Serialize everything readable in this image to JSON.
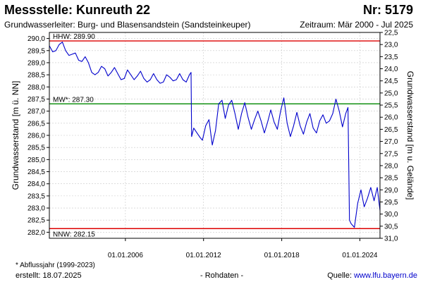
{
  "header": {
    "title": "Messstelle: Kunreuth 22",
    "station_number": "Nr: 5179",
    "aquifer": "Grundwasserleiter:  Burg- und Blasensandstein (Sandsteinkeuper)",
    "period": "Zeitraum: Mär 2000 - Jul 2025"
  },
  "footer": {
    "footnote": "* Abflussjahr (1999-2023)",
    "created": "erstellt:  18.07.2025",
    "raw_data": "- Rohdaten -",
    "source_label": "Quelle: ",
    "source_link": "www.lfu.bayern.de"
  },
  "colors": {
    "series": "#0000cc",
    "hhw_line": "#dd0000",
    "nnw_line": "#dd0000",
    "mw_line": "#008800",
    "grid": "#c8c8c8"
  },
  "chart_data": {
    "type": "line",
    "xlabel": "",
    "ylabel": "Grundwasserstand [m ü. NN]",
    "ylabel_right": "Grundwasserstand [m u. Gelände]",
    "x_range": [
      "2000-03-01",
      "2025-07-18"
    ],
    "ylim": [
      281.75,
      290.25
    ],
    "y_ticks": [
      282.0,
      282.5,
      283.0,
      283.5,
      284.0,
      284.5,
      285.0,
      285.5,
      286.0,
      286.5,
      287.0,
      287.5,
      288.0,
      288.5,
      289.0,
      289.5,
      290.0
    ],
    "y_tick_labels": [
      "282,0",
      "282,5",
      "283,0",
      "283,5",
      "284,0",
      "284,5",
      "285,0",
      "285,5",
      "286,0",
      "286,5",
      "287,0",
      "287,5",
      "288,0",
      "288,5",
      "289,0",
      "289,5",
      "290,0"
    ],
    "x_ticks": [
      "2006-01-01",
      "2012-01-01",
      "2018-01-01",
      "2024-01-01"
    ],
    "x_tick_labels": [
      "01.01.2006",
      "01.01.2012",
      "01.01.2018",
      "01.01.2024"
    ],
    "right_axis_ticks": [
      22.5,
      23.0,
      23.5,
      24.0,
      24.5,
      25.0,
      25.5,
      26.0,
      26.5,
      27.0,
      27.5,
      28.0,
      28.5,
      29.0,
      29.5,
      30.0,
      30.5,
      31.0
    ],
    "right_axis_tick_labels": [
      "22,5",
      "23,0",
      "23,5",
      "24,0",
      "24,5",
      "25,0",
      "25,5",
      "26,0",
      "26,5",
      "27,0",
      "27,5",
      "28,0",
      "28,5",
      "29,0",
      "29,5",
      "30,0",
      "30,5",
      "31,0"
    ],
    "right_axis_offset": 312.75,
    "grid": true,
    "reference_lines": [
      {
        "key": "hhw",
        "label": "HHW: 289.90",
        "value": 289.9
      },
      {
        "key": "mw",
        "label": "MW*: 287.30",
        "value": 287.3
      },
      {
        "key": "nnw",
        "label": "NNW: 282.15",
        "value": 282.15
      }
    ],
    "series": [
      {
        "x": [
          "2000-03-01",
          "2000-06-01",
          "2000-09-01",
          "2000-12-01",
          "2001-03-01",
          "2001-06-01",
          "2001-09-01",
          "2001-12-01",
          "2002-03-01",
          "2002-06-01",
          "2002-09-01",
          "2002-12-01",
          "2003-03-01",
          "2003-06-01",
          "2003-09-01",
          "2003-12-01",
          "2004-03-01",
          "2004-06-01",
          "2004-09-01",
          "2004-12-01",
          "2005-03-01",
          "2005-06-01",
          "2005-09-01",
          "2005-12-01",
          "2006-03-01",
          "2006-06-01",
          "2006-09-01",
          "2006-12-01",
          "2007-03-01",
          "2007-06-01",
          "2007-09-01",
          "2007-12-01",
          "2008-03-01",
          "2008-06-01",
          "2008-09-01",
          "2008-12-01",
          "2009-03-01",
          "2009-06-01",
          "2009-09-01",
          "2009-12-01",
          "2010-03-01",
          "2010-06-01",
          "2010-09-01",
          "2010-12-01",
          "2011-01-15",
          "2011-02-01",
          "2011-04-01",
          "2011-07-01",
          "2011-10-01",
          "2011-12-01",
          "2012-03-01",
          "2012-06-01",
          "2012-09-01",
          "2012-12-01",
          "2013-03-01",
          "2013-06-01",
          "2013-09-01",
          "2013-12-01",
          "2014-03-01",
          "2014-06-01",
          "2014-09-01",
          "2014-12-01",
          "2015-03-01",
          "2015-06-01",
          "2015-09-01",
          "2015-12-01",
          "2016-03-01",
          "2016-06-01",
          "2016-09-01",
          "2016-12-01",
          "2017-03-01",
          "2017-06-01",
          "2017-09-01",
          "2017-12-01",
          "2018-03-01",
          "2018-06-01",
          "2018-09-01",
          "2018-12-01",
          "2019-03-01",
          "2019-06-01",
          "2019-09-01",
          "2019-12-01",
          "2020-03-01",
          "2020-06-01",
          "2020-09-01",
          "2020-12-01",
          "2021-03-01",
          "2021-06-01",
          "2021-09-01",
          "2021-12-01",
          "2022-03-01",
          "2022-06-01",
          "2022-09-01",
          "2022-12-01",
          "2023-02-01",
          "2023-03-15",
          "2023-05-01",
          "2023-08-01",
          "2023-11-01",
          "2024-02-01",
          "2024-05-01",
          "2024-08-01",
          "2024-11-01",
          "2025-02-01",
          "2025-05-01",
          "2025-07-18"
        ],
        "values": [
          289.7,
          289.45,
          289.5,
          289.75,
          289.85,
          289.5,
          289.3,
          289.35,
          289.4,
          289.1,
          289.05,
          289.25,
          289.0,
          288.6,
          288.5,
          288.6,
          288.85,
          288.75,
          288.45,
          288.6,
          288.8,
          288.55,
          288.3,
          288.35,
          288.7,
          288.5,
          288.3,
          288.45,
          288.65,
          288.35,
          288.2,
          288.3,
          288.55,
          288.3,
          288.15,
          288.2,
          288.5,
          288.4,
          288.25,
          288.3,
          288.55,
          288.3,
          288.2,
          288.5,
          288.6,
          285.95,
          286.3,
          286.1,
          285.9,
          285.8,
          286.4,
          286.65,
          285.6,
          286.2,
          287.3,
          287.45,
          286.7,
          287.25,
          287.45,
          286.9,
          286.25,
          286.9,
          287.35,
          286.75,
          286.25,
          286.65,
          287.0,
          286.6,
          286.1,
          286.55,
          287.05,
          286.55,
          286.25,
          287.0,
          287.55,
          286.5,
          285.95,
          286.4,
          286.95,
          286.4,
          286.05,
          286.55,
          286.9,
          286.3,
          286.1,
          286.6,
          286.85,
          286.5,
          286.6,
          286.9,
          287.5,
          287.0,
          286.35,
          286.9,
          287.15,
          282.5,
          282.35,
          282.2,
          283.2,
          283.75,
          283.05,
          283.4,
          283.85,
          283.3,
          283.85,
          282.9
        ]
      }
    ]
  }
}
